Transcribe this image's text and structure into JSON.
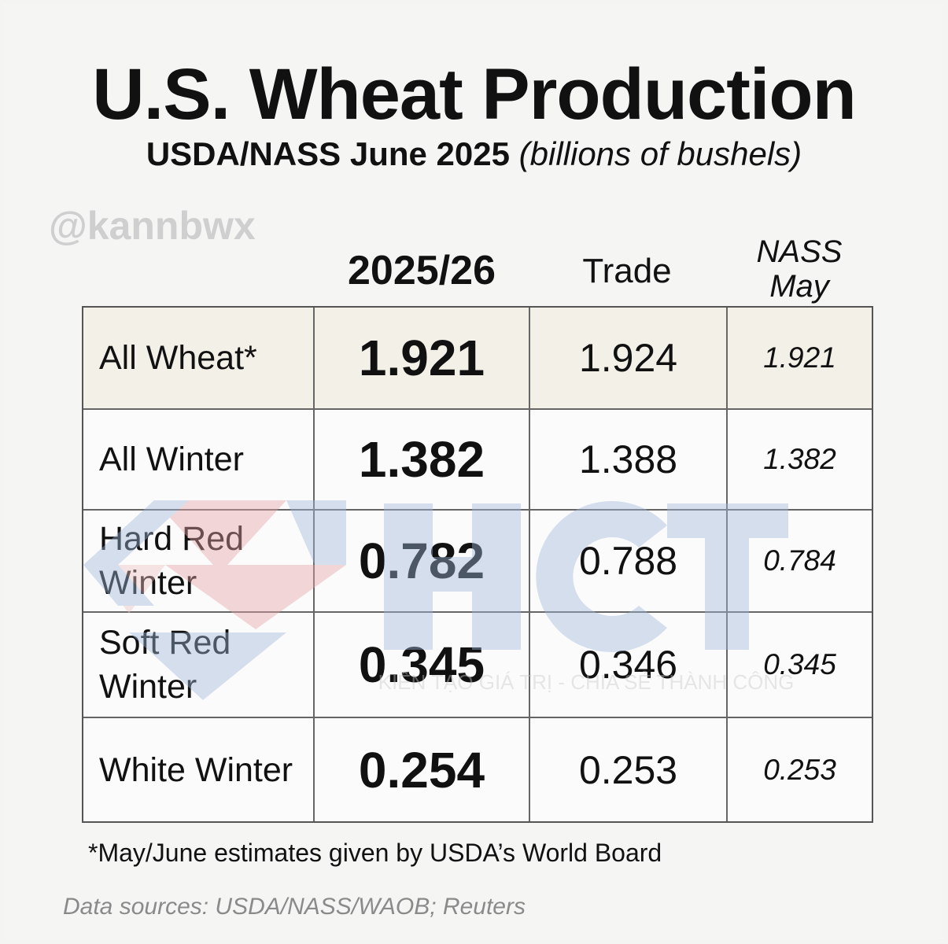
{
  "chart_data": {
    "type": "table",
    "title": "U.S. Wheat Production",
    "subtitle_main": "USDA/NASS June 2025",
    "subtitle_unit": "(billions of bushels)",
    "handle": "@kannbwx",
    "columns": {
      "year": "2025/26",
      "trade": "Trade",
      "nass_line1": "NASS",
      "nass_line2": "May"
    },
    "rows": [
      {
        "label": "All Wheat*",
        "value": "1.921",
        "trade": "1.924",
        "nass_may": "1.921"
      },
      {
        "label": "All Winter",
        "value": "1.382",
        "trade": "1.388",
        "nass_may": "1.382"
      },
      {
        "label": "Hard Red Winter",
        "label_line1": "Hard Red",
        "label_line2": "Winter",
        "value": "0.782",
        "trade": "0.788",
        "nass_may": "0.784"
      },
      {
        "label": "Soft Red Winter",
        "label_line1": "Soft Red",
        "label_line2": "Winter",
        "value": "0.345",
        "trade": "0.346",
        "nass_may": "0.345"
      },
      {
        "label": "White Winter",
        "value": "0.254",
        "trade": "0.253",
        "nass_may": "0.253"
      }
    ],
    "footnote": "*May/June estimates given by USDA’s World Board",
    "sources": "Data sources: USDA/NASS/WAOB; Reuters"
  },
  "watermark": {
    "logo_text": "HCT",
    "tagline": "KIẾN TẠO GIÁ TRỊ - CHIA SẺ THÀNH CÔNG",
    "colors": {
      "blue": "#9fb8dc",
      "red": "#e7a4a8"
    }
  },
  "colors": {
    "highlight_row": "#f3f0e8",
    "grid": "#555555"
  }
}
